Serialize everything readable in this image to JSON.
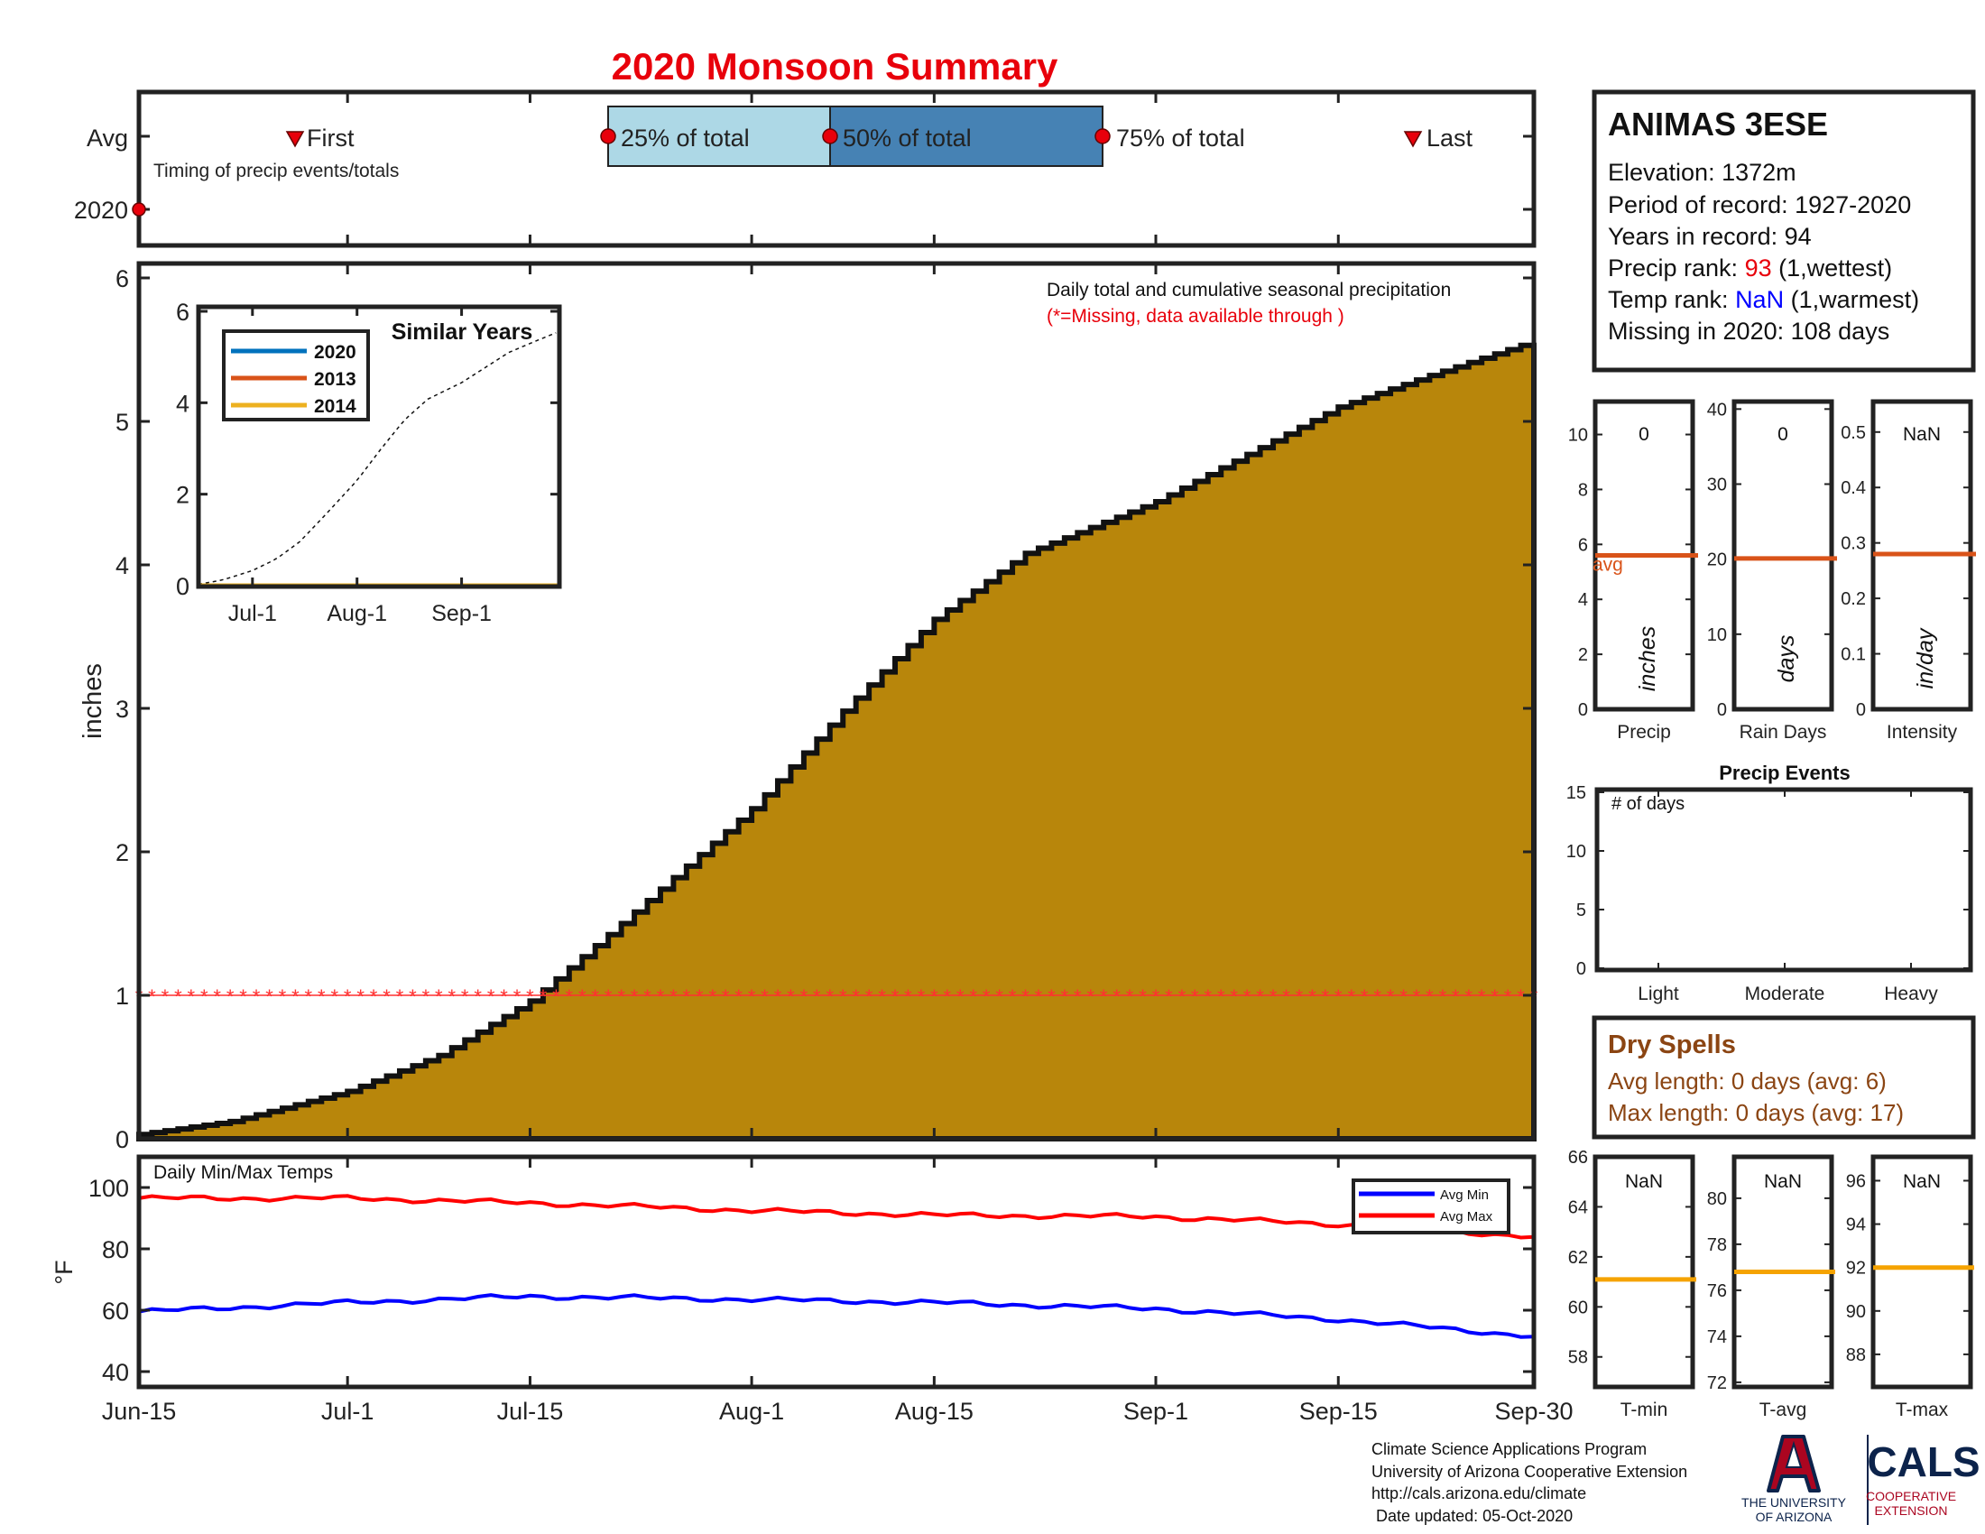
{
  "title": "2020 Monsoon Summary",
  "timing": {
    "avg_label": "Avg",
    "year_label": "2020",
    "first": "First",
    "last": "Last",
    "p25": "25% of total",
    "p50": "50% of total",
    "p75": "75% of total",
    "subtitle": "Timing of precip events/totals",
    "colors": {
      "p25_box": "#add8e6",
      "p50_box": "#4682b4",
      "marker": "#ff0000"
    }
  },
  "station": {
    "name": "ANIMAS 3ESE",
    "elevation": "Elevation: 1372m",
    "period": "Period of record: 1927-2020",
    "years": "Years in record: 94",
    "precip_rank_prefix": "Precip rank: ",
    "precip_rank_value": "93",
    "precip_rank_suffix": " (1,wettest)",
    "temp_rank_prefix": "Temp rank: ",
    "temp_rank_value": "NaN",
    "temp_rank_suffix": " (1,warmest)",
    "missing": "Missing in 2020: 108 days"
  },
  "main_chart": {
    "ylabel": "inches",
    "annotation": "Daily total and cumulative seasonal precipitation",
    "missing_note": "(*=Missing, data available through )",
    "yticks": [
      "0",
      "1",
      "2",
      "3",
      "4",
      "5",
      "6"
    ],
    "xticks": [
      "Jun-15",
      "Jul-1",
      "Jul-15",
      "Aug-1",
      "Aug-15",
      "Sep-1",
      "Sep-15",
      "Sep-30"
    ],
    "fill_color": "#b8860b"
  },
  "inset": {
    "title": "Similar Years",
    "legend": [
      {
        "name": "2020",
        "color": "#0072bd"
      },
      {
        "name": "2013",
        "color": "#d95319"
      },
      {
        "name": "2014",
        "color": "#edb120"
      }
    ],
    "yticks": [
      "0",
      "2",
      "4",
      "6"
    ],
    "xticks": [
      "Jul-1",
      "Aug-1",
      "Sep-1"
    ]
  },
  "summary_bars": [
    {
      "label": "Precip",
      "unit": "inches",
      "value": "0",
      "avg_label": "avg",
      "yticks": [
        "0",
        "2",
        "4",
        "6",
        "8",
        "10"
      ],
      "ymax": 11.2,
      "avg": 5.6
    },
    {
      "label": "Rain Days",
      "unit": "days",
      "value": "0",
      "yticks": [
        "0",
        "10",
        "20",
        "30",
        "40"
      ],
      "ymax": 41,
      "avg": 20.1
    },
    {
      "label": "Intensity",
      "unit": "in/day",
      "value": "NaN",
      "yticks": [
        "0",
        "0.1",
        "0.2",
        "0.3",
        "0.4",
        "0.5"
      ],
      "ymax": 0.555,
      "avg": 0.28
    }
  ],
  "precip_events": {
    "title": "Precip Events",
    "ylabel": "# of days",
    "yticks": [
      "0",
      "5",
      "10",
      "15"
    ],
    "categories": [
      "Light",
      "Moderate",
      "Heavy"
    ]
  },
  "dry_spells": {
    "title": "Dry Spells",
    "avg_length": "Avg length: 0 days (avg: 6)",
    "max_length": "Max length: 0 days (avg: 17)",
    "color": "#8b4513"
  },
  "temp_chart": {
    "title": "Daily Min/Max Temps",
    "ylabel": "°F",
    "yticks": [
      "40",
      "60",
      "80",
      "100"
    ],
    "legend": [
      {
        "name": "Avg Min",
        "color": "#0000ff"
      },
      {
        "name": "Avg Max",
        "color": "#ff0000"
      }
    ]
  },
  "temp_boxes": [
    {
      "label": "T-min",
      "value": "NaN",
      "yticks": [
        "58",
        "60",
        "62",
        "64",
        "66"
      ],
      "ymin": 56.8,
      "ymax": 66,
      "avg": 61.1
    },
    {
      "label": "T-avg",
      "value": "NaN",
      "yticks": [
        "72",
        "74",
        "76",
        "78",
        "80"
      ],
      "ymin": 71.8,
      "ymax": 81.8,
      "avg": 76.8
    },
    {
      "label": "T-max",
      "value": "NaN",
      "yticks": [
        "88",
        "90",
        "92",
        "94",
        "96"
      ],
      "ymin": 86.5,
      "ymax": 97.1,
      "avg": 92
    }
  ],
  "footer": {
    "line1": "Climate Science Applications Program",
    "line2": "University of Arizona Cooperative Extension",
    "line3": "http://cals.arizona.edu/climate",
    "line4": " Date updated: 05-Oct-2020",
    "ua_line1": "THE UNIVERSITY",
    "ua_line2": "OF ARIZONA",
    "cals": "CALS",
    "cals_sub1": "COOPERATIVE",
    "cals_sub2": "EXTENSION"
  },
  "chart_data": [
    {
      "type": "area",
      "title": "Daily total and cumulative seasonal precipitation",
      "ylabel": "inches",
      "x_start": "Jun-15",
      "x_end": "Sep-30",
      "ylim": [
        0,
        6
      ],
      "series": [
        {
          "name": "",
          "x": [
            "Jun-15",
            "Jun-22",
            "Jul-1",
            "Jul-8",
            "Jul-15",
            "Jul-22",
            "Aug-1",
            "Aug-8",
            "Aug-15",
            "Aug-22",
            "Sep-1",
            "Sep-8",
            "Sep-15",
            "Sep-22",
            "Sep-30"
          ],
          "values": [
            0.03,
            0.12,
            0.33,
            0.58,
            0.96,
            1.5,
            2.3,
            2.98,
            3.62,
            4.08,
            4.44,
            4.77,
            5.1,
            5.32,
            5.56
          ]
        },
        {
          "name": "",
          "x": [
            "Jun-15",
            "Sep-30"
          ],
          "values": [
            1,
            1
          ]
        }
      ],
      "grid": false
    },
    {
      "type": "line",
      "title": "Similar Years",
      "ylim": [
        0,
        6
      ],
      "xticks": [
        "Jul-1",
        "Aug-1",
        "Sep-1"
      ],
      "series": [
        {
          "name": "2020",
          "values": [
            0,
            0
          ]
        },
        {
          "name": "2013",
          "values": [
            0,
            0
          ]
        },
        {
          "name": "2014",
          "values": [
            0,
            0
          ]
        }
      ]
    },
    {
      "type": "line",
      "title": "Daily Min/Max Temps",
      "ylabel": "°F",
      "ylim": [
        35,
        110
      ],
      "series": [
        {
          "name": "Avg Min",
          "x": [
            "Jun-15",
            "Jul-1",
            "Jul-15",
            "Aug-1",
            "Aug-15",
            "Sep-1",
            "Sep-15",
            "Sep-30"
          ],
          "values": [
            59.5,
            62.5,
            64.5,
            63.5,
            62.5,
            60.5,
            57,
            51.5
          ]
        },
        {
          "name": "Avg Max",
          "x": [
            "Jun-15",
            "Jul-1",
            "Jul-15",
            "Aug-1",
            "Aug-15",
            "Sep-1",
            "Sep-15",
            "Sep-30"
          ],
          "values": [
            96.5,
            96.5,
            95,
            92.5,
            91,
            90.5,
            88,
            84
          ]
        }
      ]
    }
  ]
}
